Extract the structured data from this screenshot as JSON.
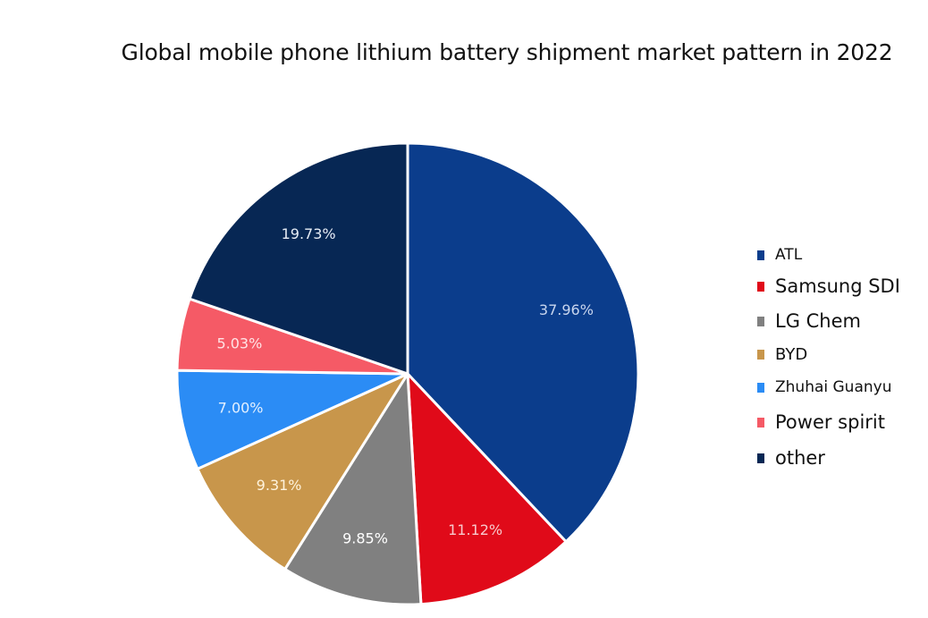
{
  "chart_data": {
    "type": "pie",
    "title": "Global mobile phone lithium battery shipment market pattern in 2022",
    "slices": [
      {
        "name": "ATL",
        "value": 37.96,
        "label": "37.96%",
        "color": "#0b3d8c",
        "label_color": "#c9d6ee"
      },
      {
        "name": "Samsung SDI",
        "value": 11.12,
        "label": "11.12%",
        "color": "#e00a19",
        "label_color": "#f7c9cc"
      },
      {
        "name": "LG Chem",
        "value": 9.85,
        "label": "9.85%",
        "color": "#808080",
        "label_color": "#ffffff"
      },
      {
        "name": "BYD",
        "value": 9.31,
        "label": "9.31%",
        "color": "#c8964b",
        "label_color": "#fff3dc"
      },
      {
        "name": "Zhuhai Guanyu",
        "value": 7.0,
        "label": "7.00%",
        "color": "#2b8cf5",
        "label_color": "#e3f0ff"
      },
      {
        "name": "Power spirit",
        "value": 5.03,
        "label": "5.03%",
        "color": "#f55a66",
        "label_color": "#ffe3e5"
      },
      {
        "name": "other",
        "value": 19.73,
        "label": "19.73%",
        "color": "#072754",
        "label_color": "#e6ecf5"
      }
    ],
    "start_angle": "12 o'clock",
    "direction": "clockwise",
    "legend_position": "right"
  }
}
